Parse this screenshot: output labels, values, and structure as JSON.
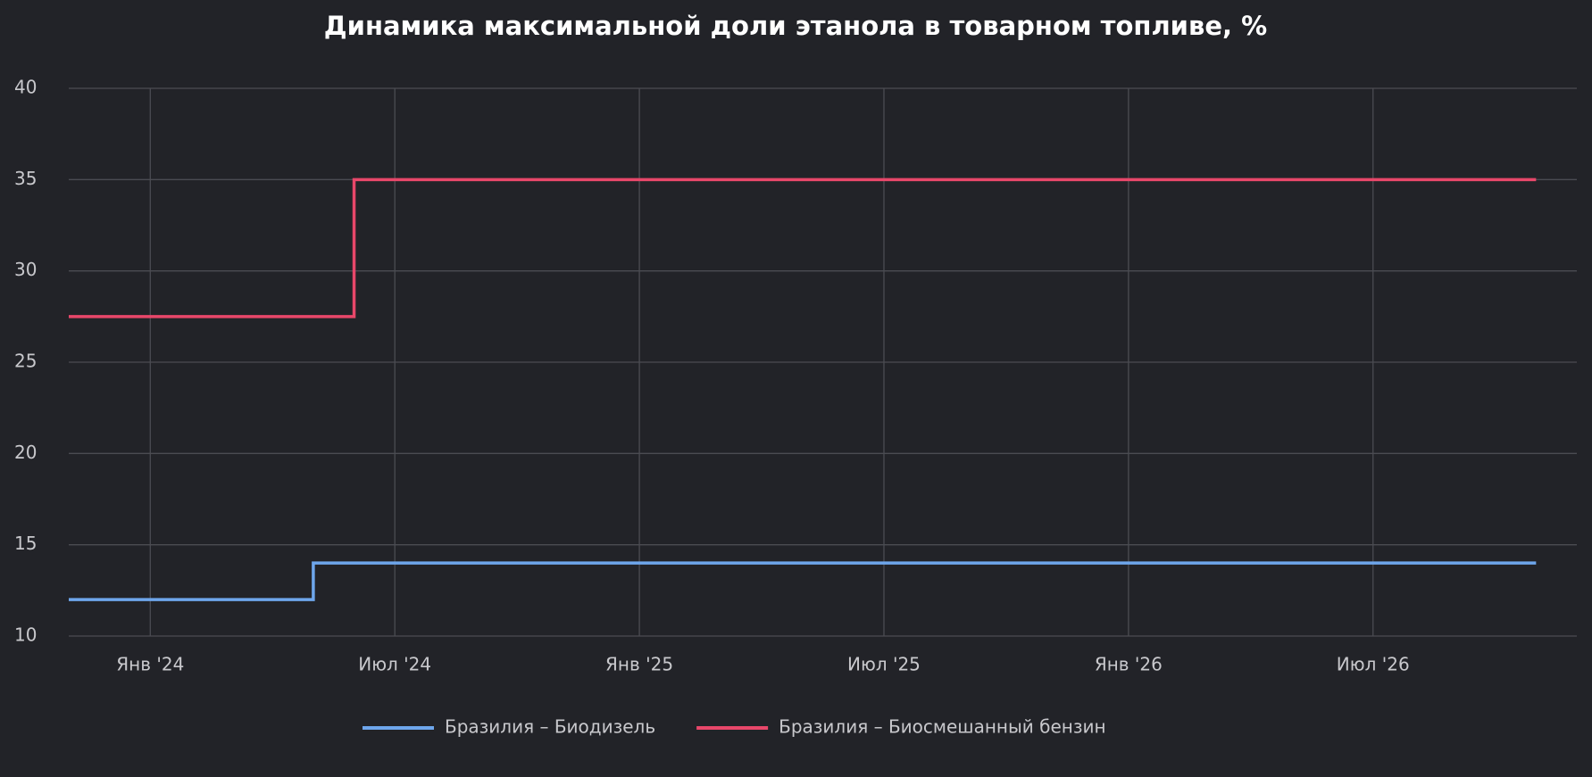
{
  "chart_data": {
    "type": "step-line",
    "title": "Динамика максимальной доли этанола в товарном топливе, %",
    "x": [
      "2023-11",
      "2024-05",
      "2024-06",
      "2026-11"
    ],
    "series": [
      {
        "name": "Бразилия – Биодизель",
        "color": "#6ea6ec",
        "values": [
          12,
          14,
          14,
          14
        ]
      },
      {
        "name": "Бразилия – Биосмешанный бензин",
        "color": "#e8476a",
        "values": [
          27.5,
          27.5,
          35,
          35
        ]
      }
    ],
    "xlim": [
      "2023-11",
      "2026-12"
    ],
    "xticks": [
      {
        "value": "2024-01",
        "label": "Янв '24"
      },
      {
        "value": "2024-07",
        "label": "Июл '24"
      },
      {
        "value": "2025-01",
        "label": "Янв '25"
      },
      {
        "value": "2025-07",
        "label": "Июл '25"
      },
      {
        "value": "2026-01",
        "label": "Янв '26"
      },
      {
        "value": "2026-07",
        "label": "Июл '26"
      }
    ],
    "ylim": [
      10,
      40
    ],
    "yticks": [
      10,
      15,
      20,
      25,
      30,
      35,
      40
    ],
    "grid": true,
    "legend": "bottom"
  }
}
